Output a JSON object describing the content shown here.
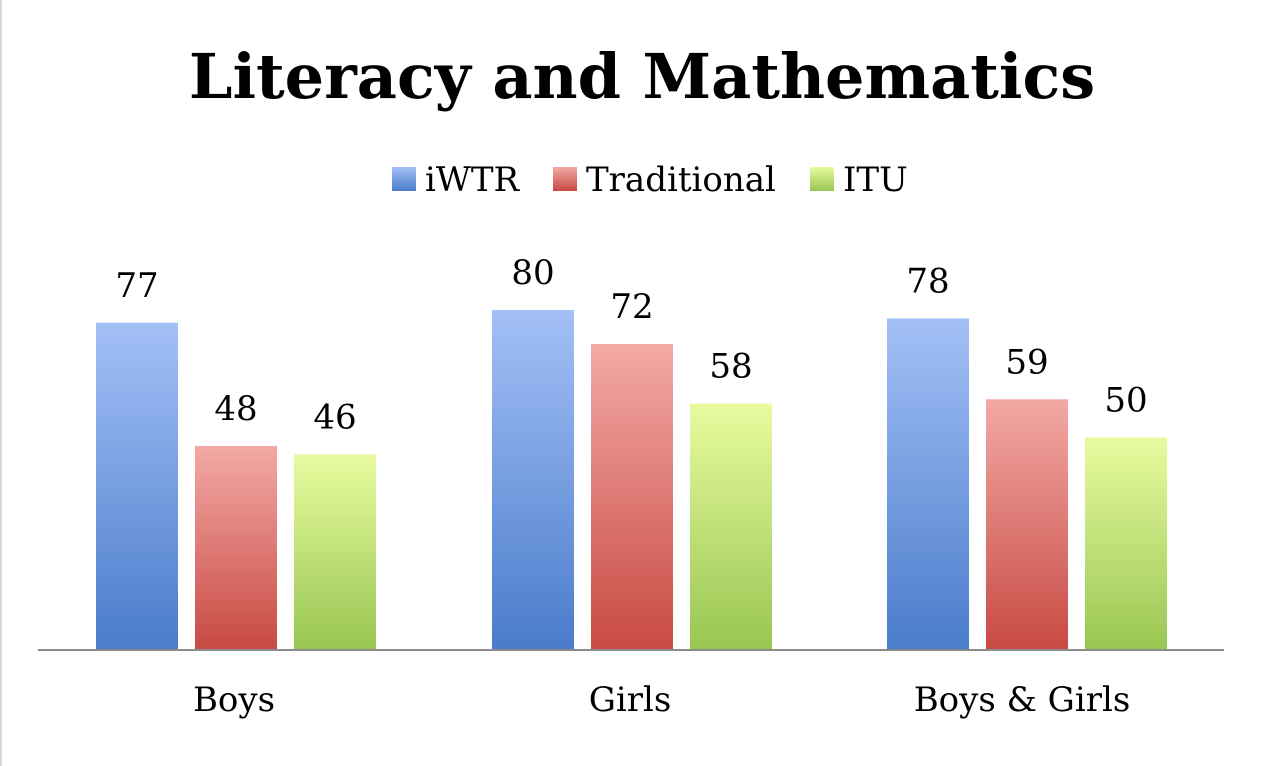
{
  "chart_data": {
    "type": "bar",
    "title": "Literacy and Mathematics",
    "categories": [
      "Boys",
      "Girls",
      "Boys & Girls"
    ],
    "series": [
      {
        "name": "iWTR",
        "values": [
          77,
          80,
          78
        ],
        "color_top": "#a3c0f6",
        "color_bottom": "#4a7ccb"
      },
      {
        "name": "Traditional",
        "values": [
          48,
          72,
          59
        ],
        "color_top": "#f3a9a5",
        "color_bottom": "#c84a43"
      },
      {
        "name": "ITU",
        "values": [
          46,
          58,
          50
        ],
        "color_top": "#e8fb9f",
        "color_bottom": "#98c652"
      }
    ],
    "xlabel": "",
    "ylabel": "",
    "ylim": [
      0,
      80
    ],
    "grid": false,
    "legend_position": "top-center",
    "show_data_labels": true,
    "axis_line_color": "#8c8c8c"
  }
}
